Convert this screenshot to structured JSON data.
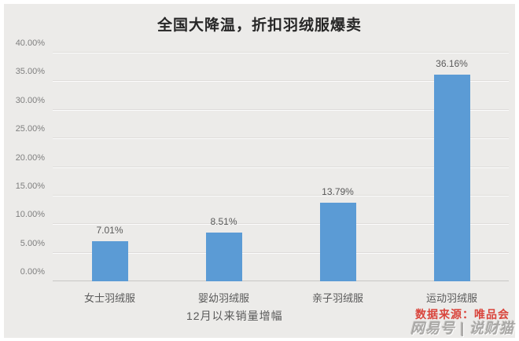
{
  "chart_data": {
    "type": "bar",
    "title": "全国大降温，折扣羽绒服爆卖",
    "categories": [
      "女士羽绒服",
      "婴幼羽绒服",
      "亲子羽绒服",
      "运动羽绒服"
    ],
    "values": [
      7.01,
      8.51,
      13.79,
      36.16
    ],
    "data_labels": [
      "7.01%",
      "8.51%",
      "13.79%",
      "36.16%"
    ],
    "xlabel": "",
    "ylabel": "",
    "ylim": [
      0,
      40
    ],
    "ytick_step": 5,
    "ytick_labels": [
      "0.00%",
      "5.00%",
      "10.00%",
      "15.00%",
      "20.00%",
      "25.00%",
      "30.00%",
      "35.00%",
      "40.00%"
    ],
    "grid": true,
    "legend": false,
    "bar_color": "#5B9BD5",
    "background_color": "#ECEBE9"
  },
  "footer": {
    "caption": "12月以来销量增幅",
    "source": "数据来源：唯品会",
    "watermark": "网易号 | 说财猫"
  }
}
